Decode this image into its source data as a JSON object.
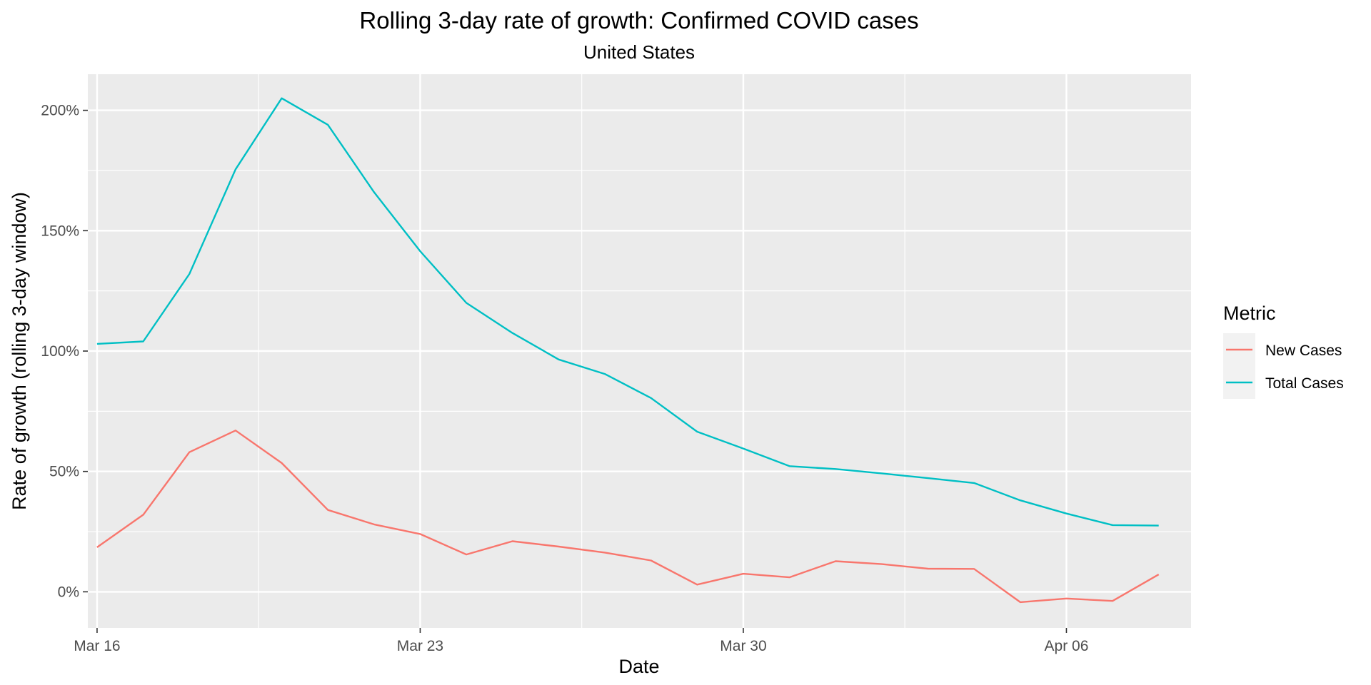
{
  "chart_data": {
    "type": "line",
    "title": "Rolling 3-day rate of growth: Confirmed COVID cases",
    "subtitle": "United States",
    "xlabel": "Date",
    "ylabel": "Rate of growth (rolling 3-day window)",
    "x": [
      "2020-03-16",
      "2020-03-17",
      "2020-03-18",
      "2020-03-19",
      "2020-03-20",
      "2020-03-21",
      "2020-03-22",
      "2020-03-23",
      "2020-03-24",
      "2020-03-25",
      "2020-03-26",
      "2020-03-27",
      "2020-03-28",
      "2020-03-29",
      "2020-03-30",
      "2020-03-31",
      "2020-04-01",
      "2020-04-02",
      "2020-04-03",
      "2020-04-04",
      "2020-04-05",
      "2020-04-06",
      "2020-04-07",
      "2020-04-08"
    ],
    "xlim": [
      "2020-03-15T19:12",
      "2020-04-08T16:48"
    ],
    "x_ticks": [
      {
        "date": "2020-03-16",
        "label": "Mar 16"
      },
      {
        "date": "2020-03-23",
        "label": "Mar 23"
      },
      {
        "date": "2020-03-30",
        "label": "Mar 30"
      },
      {
        "date": "2020-04-06",
        "label": "Apr 06"
      }
    ],
    "x_minor_ticks": [
      "2020-03-19T12:00",
      "2020-03-26T12:00",
      "2020-04-02T12:00"
    ],
    "ylim": [
      -15,
      215
    ],
    "y_ticks": [
      {
        "value": 0,
        "label": "0%"
      },
      {
        "value": 50,
        "label": "50%"
      },
      {
        "value": 100,
        "label": "100%"
      },
      {
        "value": 150,
        "label": "150%"
      },
      {
        "value": 200,
        "label": "200%"
      }
    ],
    "y_minor_ticks": [
      25,
      75,
      125,
      175
    ],
    "grid": true,
    "legend": {
      "title": "Metric",
      "position": "right"
    },
    "series": [
      {
        "name": "New Cases",
        "color": "#F8766D",
        "values": [
          18.5,
          32,
          58,
          67,
          53.5,
          34,
          28,
          24,
          15.5,
          21,
          18.8,
          16.3,
          13,
          3,
          7.5,
          6,
          12.7,
          11.5,
          9.6,
          9.5,
          -4.3,
          -2.8,
          -3.8,
          7.2
        ]
      },
      {
        "name": "Total Cases",
        "color": "#00BFC4",
        "values": [
          103,
          104,
          132,
          175.5,
          205,
          194,
          166,
          141.5,
          120,
          107.5,
          96.5,
          90.5,
          80.5,
          66.5,
          59.5,
          52.2,
          51,
          49.2,
          47.2,
          45.2,
          38,
          32.5,
          27.7,
          27.5
        ]
      }
    ]
  }
}
